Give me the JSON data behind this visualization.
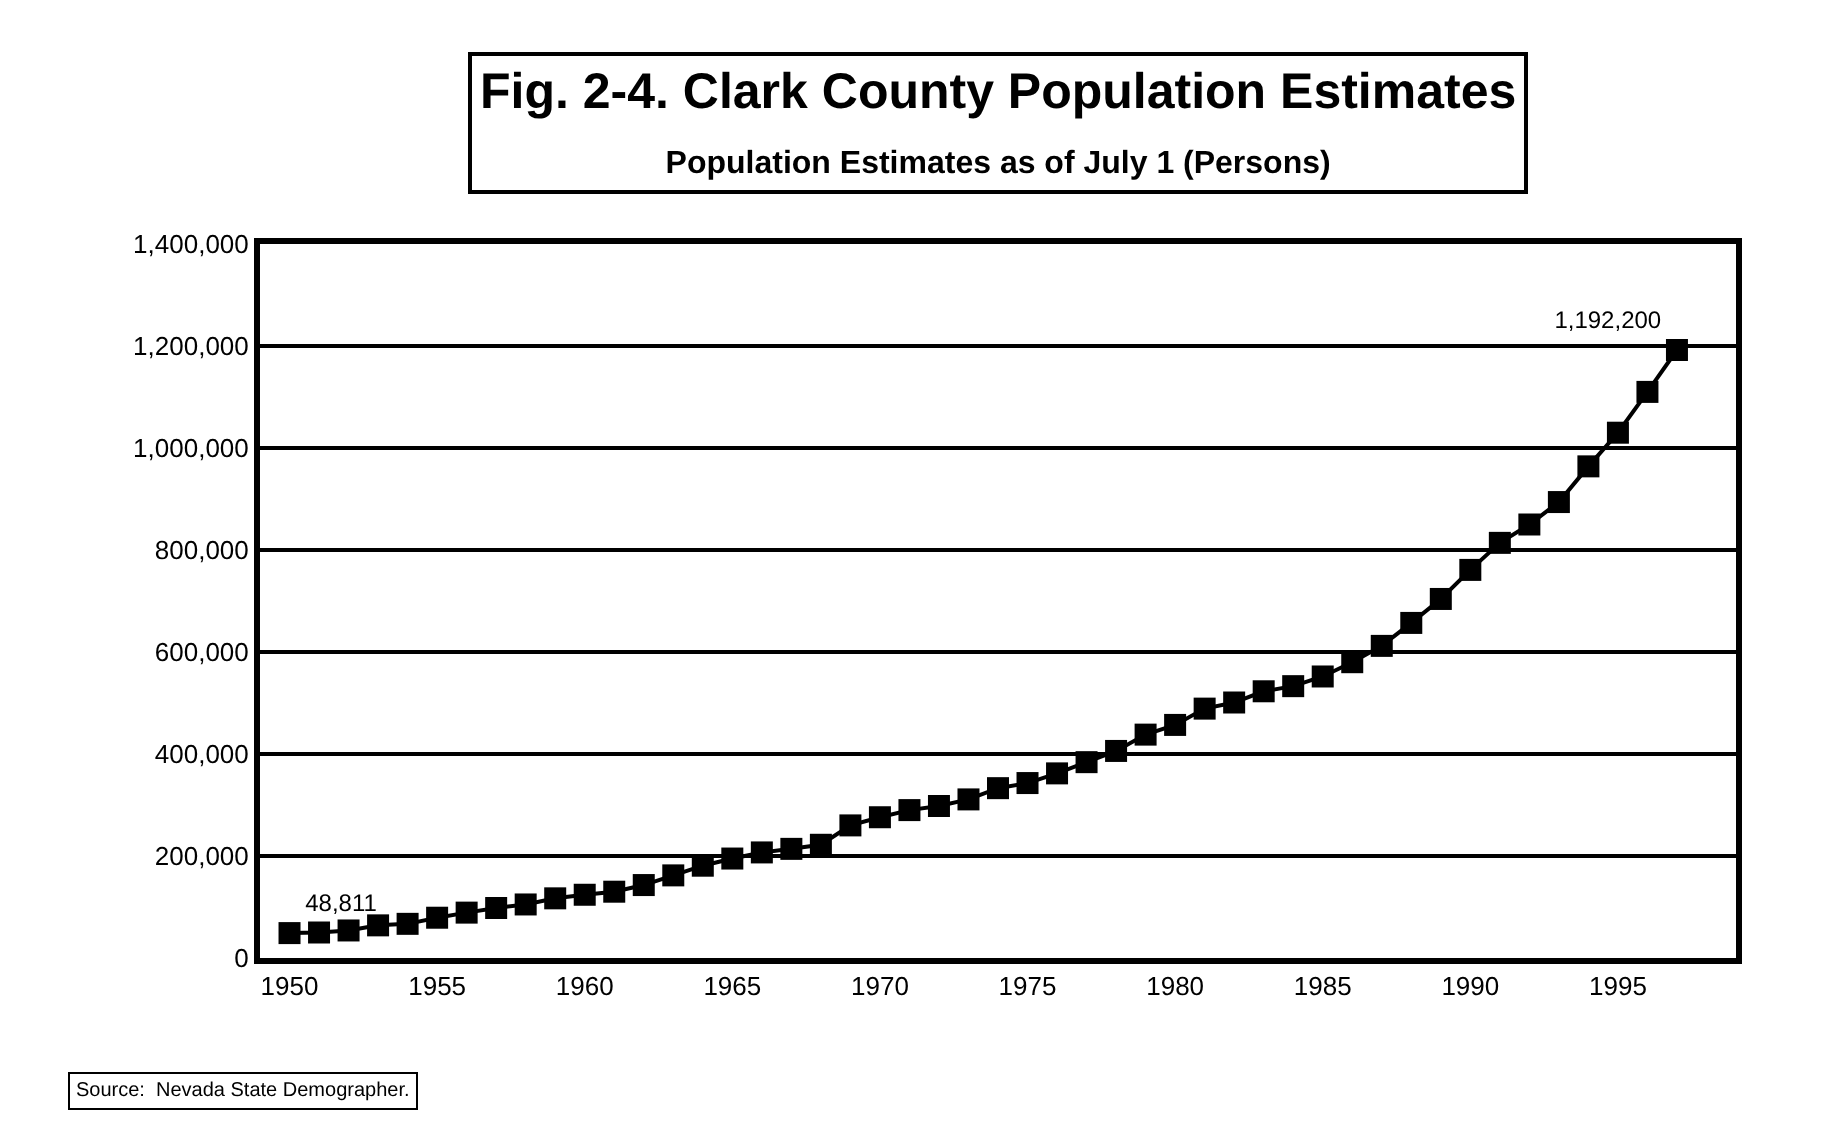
{
  "chart_data": {
    "type": "line",
    "title": "Fig. 2-4. Clark County Population Estimates",
    "subtitle": "Population Estimates as of July 1 (Persons)",
    "x": [
      1950,
      1951,
      1952,
      1953,
      1954,
      1955,
      1956,
      1957,
      1958,
      1959,
      1960,
      1961,
      1962,
      1963,
      1964,
      1965,
      1966,
      1967,
      1968,
      1969,
      1970,
      1971,
      1972,
      1973,
      1974,
      1975,
      1976,
      1977,
      1978,
      1979,
      1980,
      1981,
      1982,
      1983,
      1984,
      1985,
      1986,
      1987,
      1988,
      1989,
      1990,
      1991,
      1992,
      1993,
      1994,
      1995,
      1996,
      1997
    ],
    "series": [
      {
        "color": "#000000",
        "values": [
          48811,
          50000,
          54000,
          64000,
          67000,
          79000,
          89000,
          98000,
          105000,
          117000,
          124000,
          130000,
          143000,
          162000,
          181000,
          195000,
          207000,
          214000,
          222000,
          260000,
          276000,
          290000,
          298000,
          311000,
          333000,
          343000,
          362000,
          384000,
          406000,
          438000,
          457000,
          489000,
          501000,
          523000,
          533000,
          552000,
          580000,
          612000,
          657000,
          704000,
          761000,
          814000,
          850000,
          894000,
          964000,
          1030000,
          1110000,
          1192200
        ],
        "value_labels": [
          "48,811",
          null,
          null,
          null,
          null,
          null,
          null,
          null,
          null,
          null,
          null,
          null,
          null,
          null,
          null,
          null,
          null,
          null,
          null,
          null,
          null,
          null,
          null,
          null,
          null,
          null,
          null,
          null,
          null,
          null,
          null,
          null,
          null,
          null,
          null,
          null,
          null,
          null,
          null,
          null,
          null,
          null,
          null,
          null,
          null,
          null,
          null,
          "1,192,200"
        ]
      }
    ],
    "xlim": [
      1949,
      1999
    ],
    "xticks": [
      1950,
      1955,
      1960,
      1965,
      1970,
      1975,
      1980,
      1985,
      1990,
      1995
    ],
    "ylim": [
      0,
      1400000
    ],
    "yticks": [
      {
        "value": 0,
        "label": "0"
      },
      {
        "value": 200000,
        "label": "200,000"
      },
      {
        "value": 400000,
        "label": "400,000"
      },
      {
        "value": 600000,
        "label": "600,000"
      },
      {
        "value": 800000,
        "label": "800,000"
      },
      {
        "value": 1000000,
        "label": "1,000,000"
      },
      {
        "value": 1200000,
        "label": "1,200,000"
      },
      {
        "value": 1400000,
        "label": "1,400,000"
      }
    ],
    "grid": "y",
    "marker": "square",
    "line_style": "solid",
    "annotations": [
      "Source:  Nevada State Demographer."
    ]
  }
}
